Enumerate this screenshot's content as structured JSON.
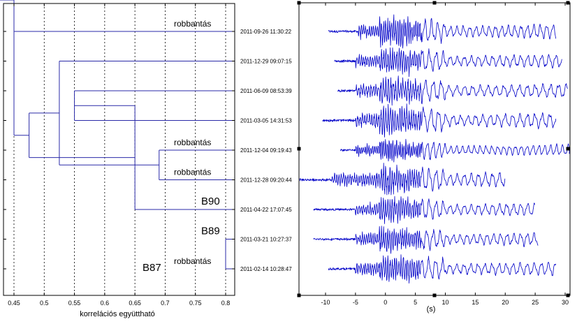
{
  "colors": {
    "dendrogram": "#2a2aa8",
    "waveform": "#0000c8",
    "frame": "#000000",
    "grid": "#000000"
  },
  "dendrogram": {
    "x_axis_label": "korrelációs együttható",
    "x_ticks": [
      "0.45",
      "0.5",
      "0.55",
      "0.6",
      "0.65",
      "0.7",
      "0.75",
      "0.8"
    ],
    "leaves": [
      {
        "timestamp": "2011-09-26 11:30:22",
        "annotation": "robbantás"
      },
      {
        "timestamp": "2011-12-29 09:07:15",
        "annotation": ""
      },
      {
        "timestamp": "2011-06-09 08:53:39",
        "annotation": ""
      },
      {
        "timestamp": "2011-03-05 14:31:53",
        "annotation": ""
      },
      {
        "timestamp": "2011-12-04 09:19:43",
        "annotation": "robbantás"
      },
      {
        "timestamp": "2011-12-28 09:20:44",
        "annotation": "robbantás"
      },
      {
        "timestamp": "2011-04-22 17:07:45",
        "annotation": "B90"
      },
      {
        "timestamp": "2011-03-21 10:27:37",
        "annotation": "B89"
      },
      {
        "timestamp": "2011-02-14 10:28:47",
        "annotation": "robbantás"
      }
    ],
    "extra_annotation": "B87",
    "merges": [
      {
        "a": 7,
        "b": 8,
        "corr": 0.8
      },
      {
        "a": 2,
        "b": 3,
        "corr": 0.55
      },
      {
        "a": 4,
        "b": 5,
        "corr": 0.69
      },
      {
        "a": 6,
        "b": "m1",
        "corr": 0.65
      },
      {
        "a": 1,
        "b": "m2",
        "corr": 0.525
      },
      {
        "a": "m3",
        "b": "m4",
        "corr": 0.475
      },
      {
        "a": 0,
        "b": "m5",
        "corr": 0.45
      },
      {
        "a": "m6",
        "b": "m7",
        "corr": 0.45
      }
    ]
  },
  "seismograms": {
    "x_axis_label": "(s)",
    "x_ticks": [
      "-10",
      "-5",
      "0",
      "5",
      "10",
      "15",
      "20",
      "25",
      "30"
    ],
    "xlim": [
      -15,
      31
    ],
    "traces": [
      {
        "start": -9.5,
        "onset": -4.5,
        "end": 28.5,
        "amp": 1.0,
        "freq": 1.1
      },
      {
        "start": -8.5,
        "onset": -5.0,
        "end": 29.5,
        "amp": 0.95,
        "freq": 1.0
      },
      {
        "start": -8.0,
        "onset": -5.0,
        "end": 30.5,
        "amp": 1.0,
        "freq": 0.9
      },
      {
        "start": -10.5,
        "onset": -5.0,
        "end": 28.5,
        "amp": 1.05,
        "freq": 0.95
      },
      {
        "start": -7.5,
        "onset": -5.0,
        "end": 31.0,
        "amp": 0.8,
        "freq": 1.2
      },
      {
        "start": -14.5,
        "onset": -9.0,
        "end": 20.0,
        "amp": 1.0,
        "freq": 1.0
      },
      {
        "start": -12.0,
        "onset": -5.0,
        "end": 25.0,
        "amp": 0.9,
        "freq": 1.0
      },
      {
        "start": -12.0,
        "onset": -5.0,
        "end": 25.5,
        "amp": 0.9,
        "freq": 1.05
      },
      {
        "start": -9.5,
        "onset": -5.0,
        "end": 28.5,
        "amp": 0.95,
        "freq": 1.0
      }
    ]
  }
}
